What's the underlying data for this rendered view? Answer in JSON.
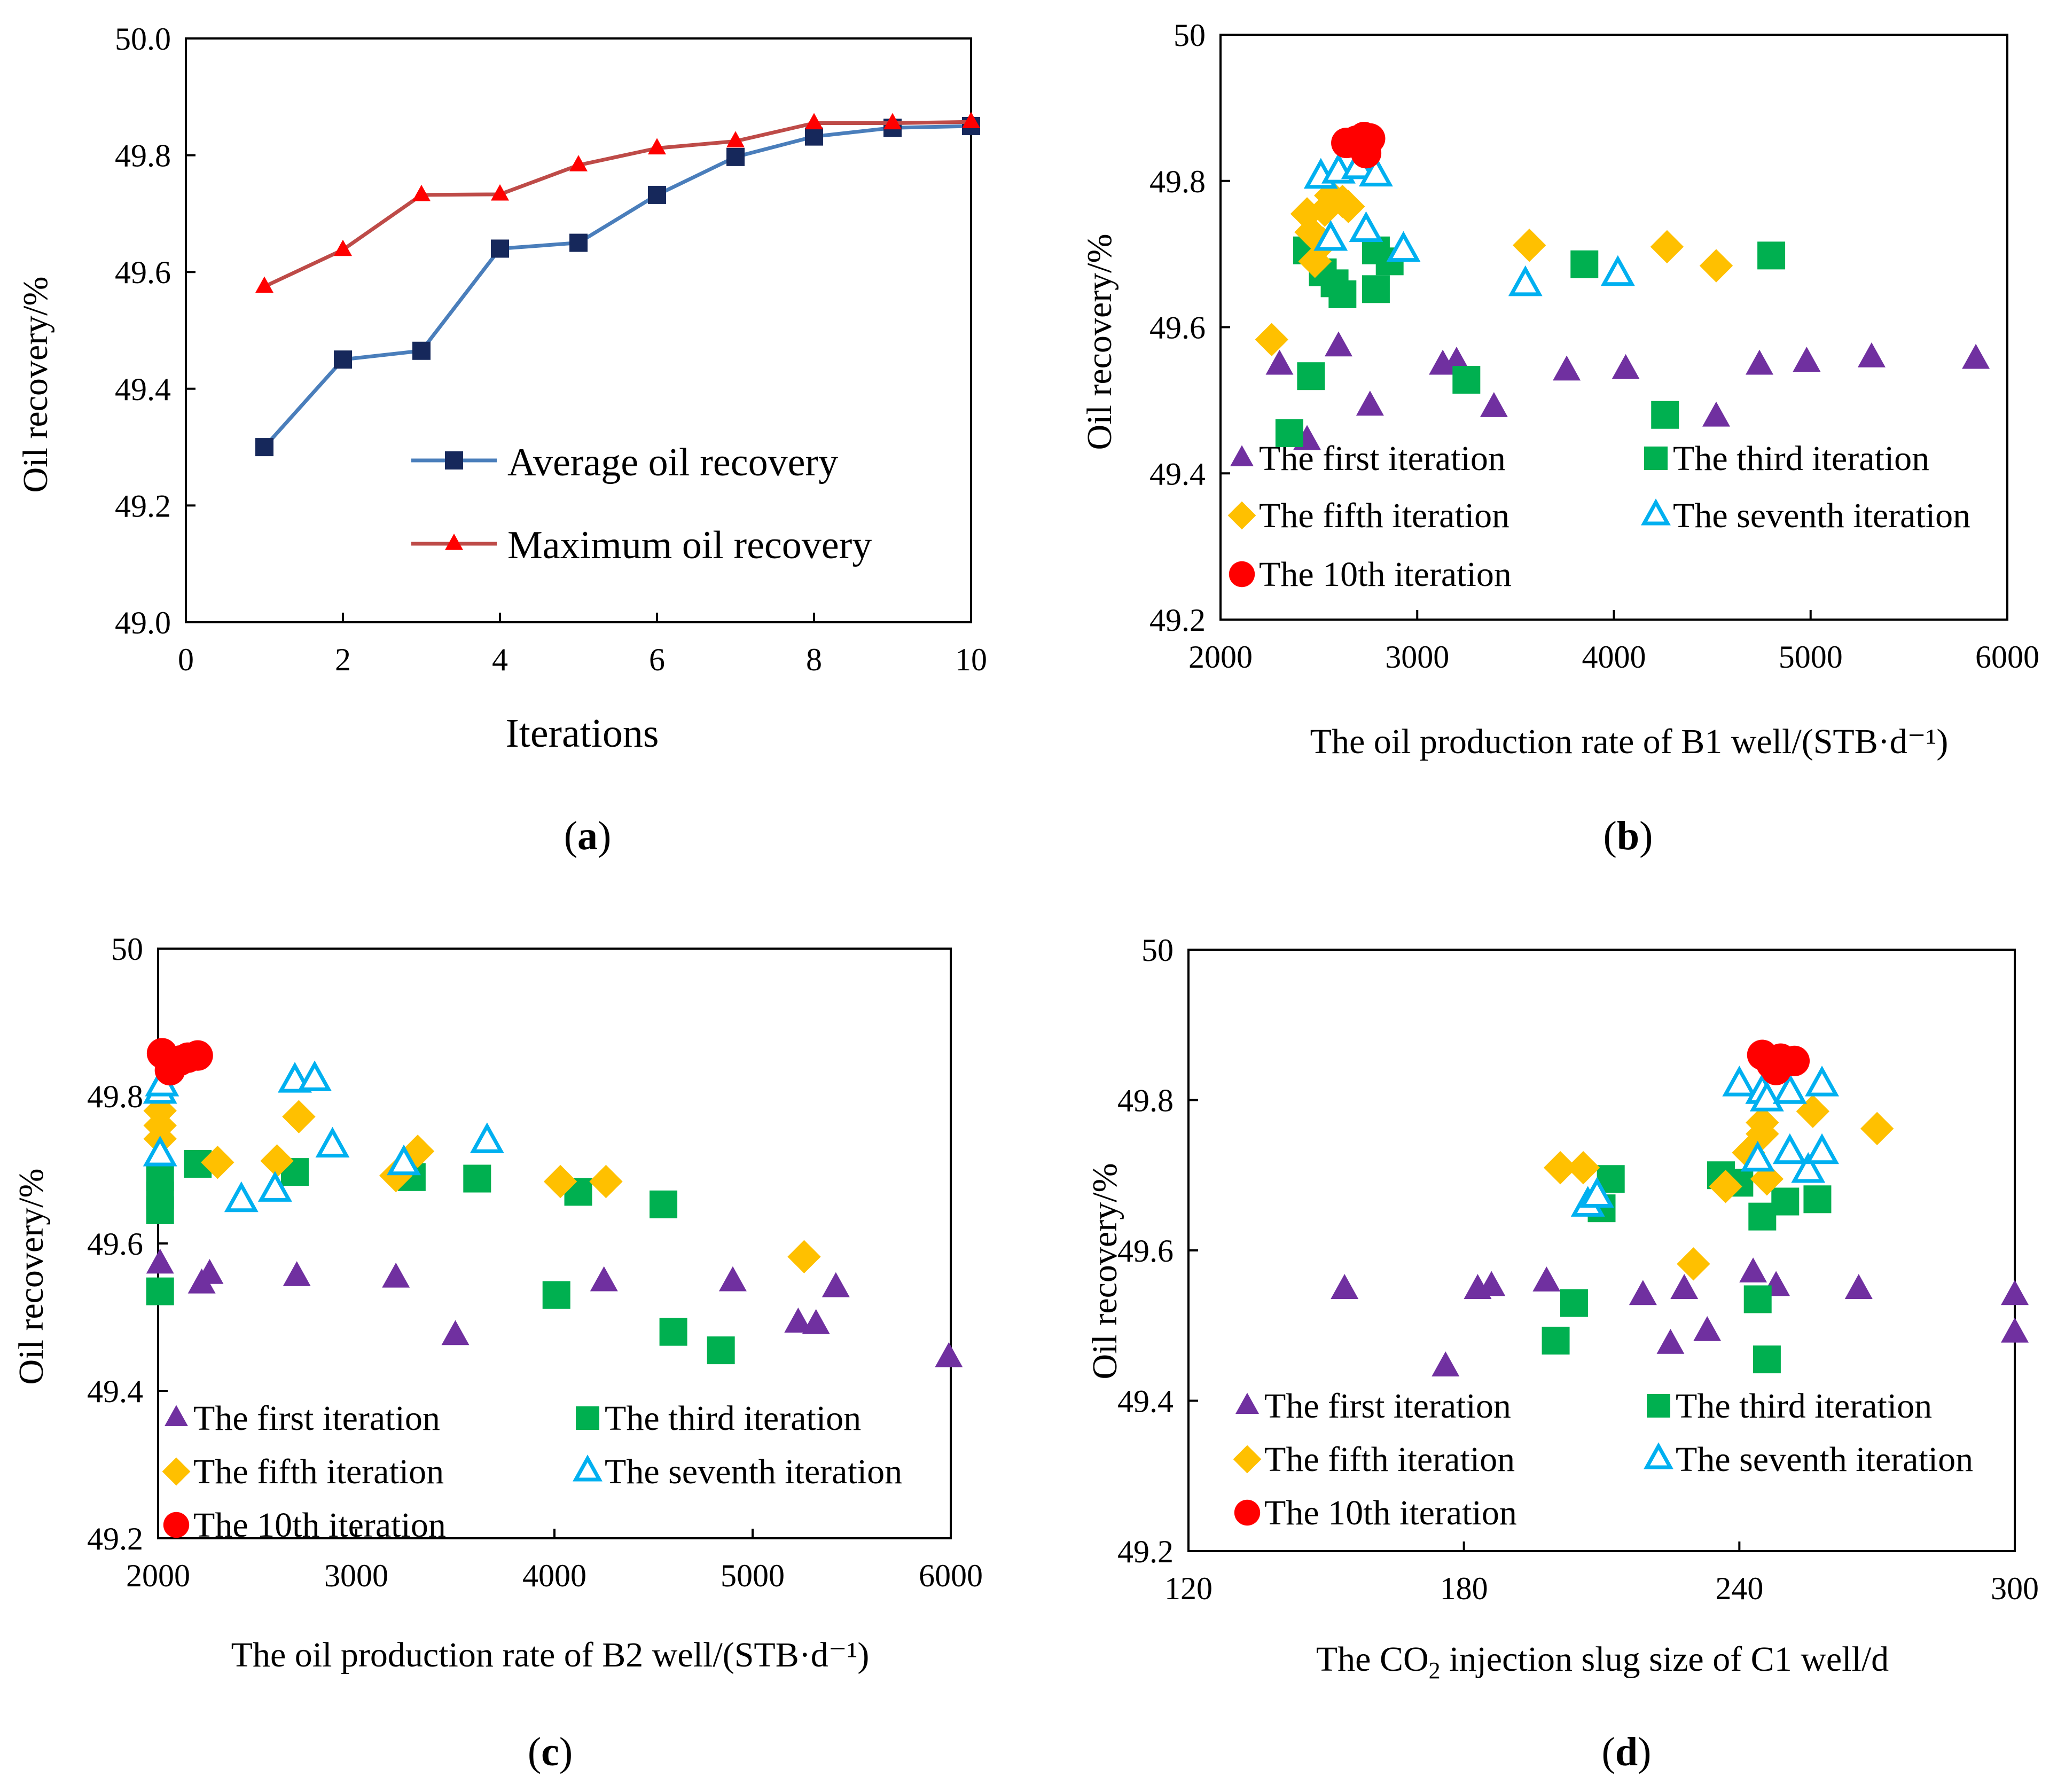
{
  "chart_data": [
    {
      "id": "a",
      "type": "line",
      "panel_label": "(a)",
      "panel_letter": "a",
      "xlabel": "Iterations",
      "ylabel": "Oil recovery/%",
      "xlim": [
        0,
        10
      ],
      "ylim": [
        49.0,
        50.0
      ],
      "xticks": [
        "0",
        "2",
        "4",
        "6",
        "8",
        "10"
      ],
      "yticks": [
        "49.0",
        "49.2",
        "49.4",
        "49.6",
        "49.8",
        "50.0"
      ],
      "grid": false,
      "legend_position": "bottom-right",
      "x": [
        1,
        2,
        3,
        4,
        5,
        6,
        7,
        8,
        9,
        10
      ],
      "series": [
        {
          "name": "Average oil recovery",
          "line_color": "#4a7ebb",
          "marker_color": "#16285b",
          "marker": "square",
          "values": [
            49.3,
            49.45,
            49.465,
            49.64,
            49.65,
            49.732,
            49.797,
            49.832,
            49.847,
            49.85
          ]
        },
        {
          "name": "Maximum oil recovery",
          "line_color": "#be4b48",
          "marker_color": "#ff0000",
          "marker": "triangle",
          "values": [
            49.575,
            49.638,
            49.732,
            49.733,
            49.783,
            49.812,
            49.824,
            49.855,
            49.855,
            49.857
          ]
        }
      ]
    },
    {
      "id": "b",
      "type": "scatter",
      "panel_label": "(b)",
      "panel_letter": "b",
      "xlabel": "The oil production rate of  B1 well/(STB·d⁻¹)",
      "ylabel": "Oil recovery/%",
      "xlim": [
        2000,
        6000
      ],
      "ylim": [
        49.2,
        50.0
      ],
      "xticks": [
        "2000",
        "3000",
        "4000",
        "5000",
        "6000"
      ],
      "yticks": [
        "49.2",
        "49.4",
        "49.6",
        "49.8",
        "50"
      ],
      "grid": false,
      "legend_position": "bottom-left",
      "series": [
        {
          "name": "The first iteration",
          "marker": "triangle",
          "color": "#7030a0",
          "points": [
            [
              2300,
              49.548
            ],
            [
              2440,
              49.445
            ],
            [
              2600,
              49.573
            ],
            [
              2760,
              49.492
            ],
            [
              3130,
              49.548
            ],
            [
              3200,
              49.552
            ],
            [
              3390,
              49.49
            ],
            [
              3760,
              49.54
            ],
            [
              4060,
              49.542
            ],
            [
              4520,
              49.477
            ],
            [
              4740,
              49.548
            ],
            [
              4980,
              49.552
            ],
            [
              5310,
              49.558
            ],
            [
              5840,
              49.556
            ]
          ]
        },
        {
          "name": "The third iteration",
          "marker": "square",
          "color": "#00b050",
          "points": [
            [
              2350,
              49.455
            ],
            [
              2440,
              49.705
            ],
            [
              2460,
              49.533
            ],
            [
              2520,
              49.675
            ],
            [
              2580,
              49.66
            ],
            [
              2620,
              49.645
            ],
            [
              2790,
              49.652
            ],
            [
              2790,
              49.705
            ],
            [
              2860,
              49.69
            ],
            [
              3250,
              49.528
            ],
            [
              3850,
              49.686
            ],
            [
              4260,
              49.48
            ],
            [
              4800,
              49.698
            ]
          ]
        },
        {
          "name": "The fifth iteration",
          "marker": "diamond",
          "color": "#ffc000",
          "points": [
            [
              2260,
              49.583
            ],
            [
              2440,
              49.755
            ],
            [
              2460,
              49.73
            ],
            [
              2480,
              49.69
            ],
            [
              2520,
              49.715
            ],
            [
              2530,
              49.76
            ],
            [
              2560,
              49.78
            ],
            [
              2620,
              49.772
            ],
            [
              2650,
              49.765
            ],
            [
              3570,
              49.712
            ],
            [
              4270,
              49.71
            ],
            [
              4520,
              49.684
            ]
          ]
        },
        {
          "name": "The seventh iteration",
          "marker": "triangle-open",
          "color": "#00b0f0",
          "points": [
            [
              2510,
              49.805
            ],
            [
              2560,
              49.72
            ],
            [
              2600,
              49.812
            ],
            [
              2700,
              49.818
            ],
            [
              2740,
              49.732
            ],
            [
              2790,
              49.808
            ],
            [
              2930,
              49.705
            ],
            [
              3550,
              49.658
            ],
            [
              4020,
              49.672
            ]
          ]
        },
        {
          "name": "The 10th iteration",
          "marker": "circle",
          "color": "#ff0000",
          "points": [
            [
              2640,
              49.852
            ],
            [
              2690,
              49.855
            ],
            [
              2730,
              49.86
            ],
            [
              2760,
              49.858
            ],
            [
              2740,
              49.838
            ],
            [
              2700,
              49.852
            ]
          ]
        }
      ]
    },
    {
      "id": "c",
      "type": "scatter",
      "panel_label": "(c)",
      "panel_letter": "c",
      "xlabel": "The oil production rate of  B2 well/(STB·d⁻¹)",
      "ylabel": "Oil recovery/%",
      "xlim": [
        2000,
        6000
      ],
      "ylim": [
        49.2,
        50.0
      ],
      "xticks": [
        "2000",
        "3000",
        "4000",
        "5000",
        "6000"
      ],
      "yticks": [
        "49.2",
        "49.4",
        "49.6",
        "49.8",
        "50"
      ],
      "grid": false,
      "legend_position": "bottom-left",
      "series": [
        {
          "name": "The first iteration",
          "marker": "triangle",
          "color": "#7030a0",
          "points": [
            [
              2010,
              49.572
            ],
            [
              2220,
              49.545
            ],
            [
              2260,
              49.558
            ],
            [
              2700,
              49.555
            ],
            [
              3200,
              49.553
            ],
            [
              3500,
              49.475
            ],
            [
              4250,
              49.548
            ],
            [
              4900,
              49.548
            ],
            [
              5230,
              49.492
            ],
            [
              5320,
              49.49
            ],
            [
              5420,
              49.54
            ],
            [
              5990,
              49.445
            ]
          ]
        },
        {
          "name": "The third iteration",
          "marker": "square",
          "color": "#00b050",
          "points": [
            [
              2010,
              49.535
            ],
            [
              2010,
              49.645
            ],
            [
              2010,
              49.665
            ],
            [
              2010,
              49.69
            ],
            [
              2200,
              49.708
            ],
            [
              2690,
              49.697
            ],
            [
              3280,
              49.69
            ],
            [
              3610,
              49.688
            ],
            [
              4010,
              49.53
            ],
            [
              4120,
              49.67
            ],
            [
              4550,
              49.653
            ],
            [
              4600,
              49.48
            ],
            [
              4840,
              49.455
            ]
          ]
        },
        {
          "name": "The fifth iteration",
          "marker": "diamond",
          "color": "#ffc000",
          "points": [
            [
              2010,
              49.742
            ],
            [
              2010,
              49.76
            ],
            [
              2010,
              49.78
            ],
            [
              2300,
              49.71
            ],
            [
              2600,
              49.712
            ],
            [
              2710,
              49.772
            ],
            [
              3200,
              49.692
            ],
            [
              3310,
              49.725
            ],
            [
              4030,
              49.684
            ],
            [
              4260,
              49.684
            ],
            [
              5260,
              49.582
            ]
          ]
        },
        {
          "name": "The seventh iteration",
          "marker": "triangle-open",
          "color": "#00b0f0",
          "points": [
            [
              2010,
              49.72
            ],
            [
              2010,
              49.805
            ],
            [
              2020,
              49.815
            ],
            [
              2420,
              49.658
            ],
            [
              2590,
              49.672
            ],
            [
              2690,
              49.82
            ],
            [
              2790,
              49.822
            ],
            [
              2880,
              49.732
            ],
            [
              3240,
              49.708
            ],
            [
              3660,
              49.738
            ]
          ]
        },
        {
          "name": "The 10th iteration",
          "marker": "circle",
          "color": "#ff0000",
          "points": [
            [
              2020,
              49.858
            ],
            [
              2060,
              49.835
            ],
            [
              2110,
              49.848
            ],
            [
              2150,
              49.852
            ],
            [
              2200,
              49.855
            ]
          ]
        }
      ]
    },
    {
      "id": "d",
      "type": "scatter",
      "panel_label": "(d)",
      "panel_letter": "d",
      "xlabel": "The CO₂ injection slug size of C1 well/d",
      "ylabel": "Oil recovery/%",
      "xlim": [
        120,
        300
      ],
      "ylim": [
        49.2,
        50.0
      ],
      "xticks": [
        "120",
        "180",
        "240",
        "300"
      ],
      "yticks": [
        "49.2",
        "49.4",
        "49.6",
        "49.8",
        "50"
      ],
      "grid": false,
      "legend_position": "bottom-left",
      "series": [
        {
          "name": "The first iteration",
          "marker": "triangle",
          "color": "#7030a0",
          "points": [
            [
              154,
              49.548
            ],
            [
              176,
              49.445
            ],
            [
              183,
              49.548
            ],
            [
              186,
              49.552
            ],
            [
              198,
              49.558
            ],
            [
              219,
              49.54
            ],
            [
              225,
              49.475
            ],
            [
              228,
              49.548
            ],
            [
              233,
              49.492
            ],
            [
              243,
              49.57
            ],
            [
              248,
              49.552
            ],
            [
              266,
              49.548
            ],
            [
              300,
              49.54
            ],
            [
              300,
              49.49
            ]
          ]
        },
        {
          "name": "The third iteration",
          "marker": "square",
          "color": "#00b050",
          "points": [
            [
              200,
              49.48
            ],
            [
              204,
              49.53
            ],
            [
              210,
              49.656
            ],
            [
              212,
              49.695
            ],
            [
              236,
              49.7
            ],
            [
              240,
              49.69
            ],
            [
              244,
              49.535
            ],
            [
              245,
              49.645
            ],
            [
              246,
              49.455
            ],
            [
              250,
              49.665
            ],
            [
              257,
              49.668
            ]
          ]
        },
        {
          "name": "The fifth iteration",
          "marker": "diamond",
          "color": "#ffc000",
          "points": [
            [
              201,
              49.71
            ],
            [
              206,
              49.71
            ],
            [
              230,
              49.582
            ],
            [
              237,
              49.685
            ],
            [
              242,
              49.73
            ],
            [
              245,
              49.77
            ],
            [
              245,
              49.755
            ],
            [
              246,
              49.695
            ],
            [
              256,
              49.785
            ],
            [
              270,
              49.762
            ]
          ]
        },
        {
          "name": "The seventh iteration",
          "marker": "triangle-open",
          "color": "#00b0f0",
          "points": [
            [
              207,
              49.66
            ],
            [
              209,
              49.672
            ],
            [
              240,
              49.82
            ],
            [
              244,
              49.72
            ],
            [
              245,
              49.81
            ],
            [
              246,
              49.8
            ],
            [
              251,
              49.81
            ],
            [
              251,
              49.73
            ],
            [
              255,
              49.705
            ],
            [
              258,
              49.73
            ],
            [
              258,
              49.82
            ]
          ]
        },
        {
          "name": "The 10th iteration",
          "marker": "circle",
          "color": "#ff0000",
          "points": [
            [
              245,
              49.86
            ],
            [
              247,
              49.848
            ],
            [
              248,
              49.84
            ],
            [
              249,
              49.855
            ],
            [
              252,
              49.852
            ]
          ]
        }
      ]
    }
  ]
}
